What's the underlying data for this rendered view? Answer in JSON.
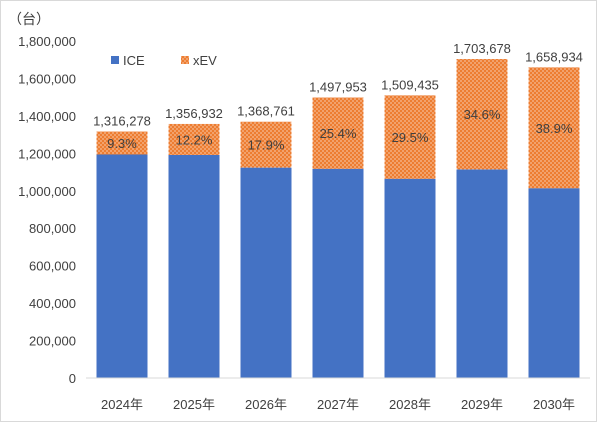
{
  "chart_data": {
    "type": "bar",
    "stacked": true,
    "unit_label": "（台）",
    "categories": [
      "2024年",
      "2025年",
      "2026年",
      "2027年",
      "2028年",
      "2029年",
      "2030年"
    ],
    "totals": [
      "1,316,278",
      "1,356,932",
      "1,368,761",
      "1,497,953",
      "1,509,435",
      "1,703,678",
      "1,658,934"
    ],
    "total_values": [
      1316278,
      1356932,
      1368761,
      1497953,
      1509435,
      1703678,
      1658934
    ],
    "xev_share_labels": [
      "9.3%",
      "12.2%",
      "17.9%",
      "25.4%",
      "29.5%",
      "34.6%",
      "38.9%"
    ],
    "xev_share": [
      0.093,
      0.122,
      0.179,
      0.254,
      0.295,
      0.346,
      0.389
    ],
    "series": [
      {
        "name": "ICE",
        "color": "#4472C4"
      },
      {
        "name": "xEV",
        "color": "#ED7D31"
      }
    ],
    "y_ticks": [
      "0",
      "200,000",
      "400,000",
      "600,000",
      "800,000",
      "1,000,000",
      "1,200,000",
      "1,400,000",
      "1,600,000",
      "1,800,000"
    ],
    "ylim": [
      0,
      1800000
    ],
    "legend_position": "top-left",
    "grid": false
  }
}
